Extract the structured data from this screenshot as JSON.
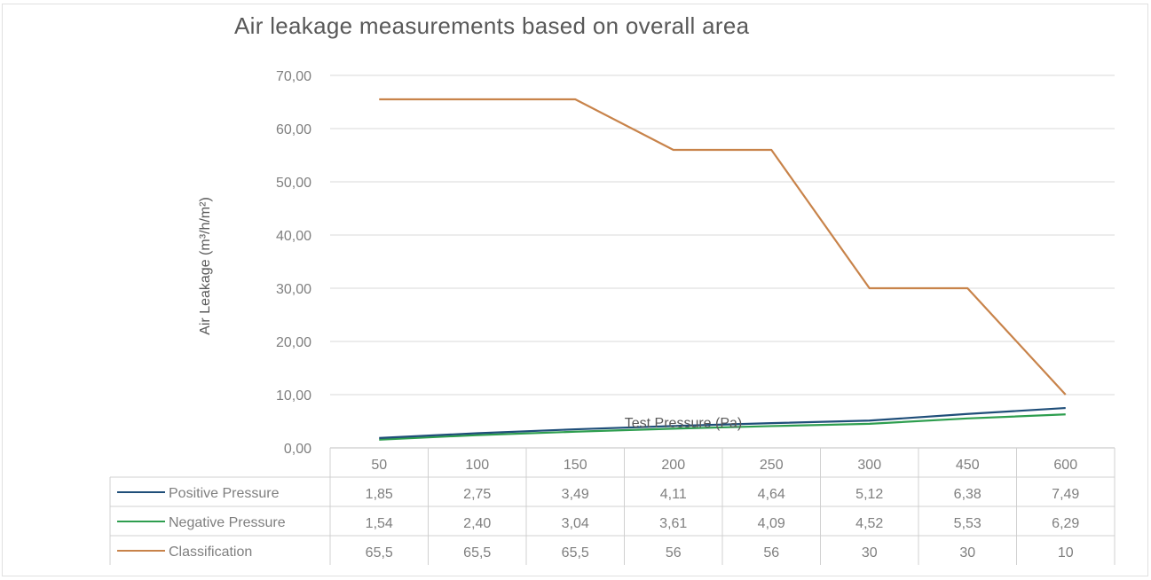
{
  "chart_data": {
    "type": "line",
    "title": "Air leakage measurements based on overall area",
    "xlabel": "Test Pressure (Pa)",
    "ylabel": "Air Leakage (m³/h/m²)",
    "ylim": [
      0,
      70
    ],
    "yticks": [
      "0,00",
      "10,00",
      "20,00",
      "30,00",
      "40,00",
      "50,00",
      "60,00",
      "70,00"
    ],
    "categories": [
      "50",
      "100",
      "150",
      "200",
      "250",
      "300",
      "450",
      "600"
    ],
    "grid": true,
    "legend": "data-table",
    "series": [
      {
        "name": "Positive Pressure",
        "color": "#1f4e79",
        "values": [
          1.85,
          2.75,
          3.49,
          4.11,
          4.64,
          5.12,
          6.38,
          7.49
        ],
        "labels": [
          "1,85",
          "2,75",
          "3,49",
          "4,11",
          "4,64",
          "5,12",
          "6,38",
          "7,49"
        ]
      },
      {
        "name": "Negative Pressure",
        "color": "#2e9e4f",
        "values": [
          1.54,
          2.4,
          3.04,
          3.61,
          4.09,
          4.52,
          5.53,
          6.29
        ],
        "labels": [
          "1,54",
          "2,40",
          "3,04",
          "3,61",
          "4,09",
          "4,52",
          "5,53",
          "6,29"
        ]
      },
      {
        "name": "Classification",
        "color": "#c8834a",
        "values": [
          65.5,
          65.5,
          65.5,
          56,
          56,
          30,
          30,
          10
        ],
        "labels": [
          "65,5",
          "65,5",
          "65,5",
          "56",
          "56",
          "30",
          "30",
          "10"
        ]
      }
    ]
  }
}
